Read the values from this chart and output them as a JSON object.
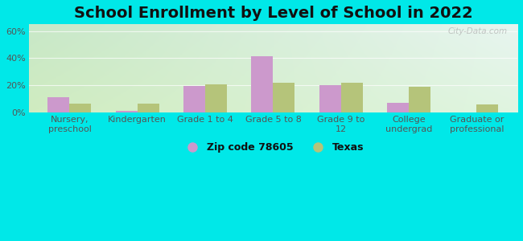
{
  "title": "School Enrollment by Level of School in 2022",
  "categories": [
    "Nursery,\npreschool",
    "Kindergarten",
    "Grade 1 to 4",
    "Grade 5 to 8",
    "Grade 9 to\n12",
    "College\nundergrad",
    "Graduate or\nprofessional"
  ],
  "zip_values": [
    11,
    1,
    19.5,
    41.5,
    20,
    7,
    0
  ],
  "texas_values": [
    6.5,
    6.5,
    21,
    22,
    22,
    19,
    6
  ],
  "zip_color": "#cc99cc",
  "texas_color": "#b5c47a",
  "background_outer": "#00e8e8",
  "grad_top_left": "#c8e8c8",
  "grad_top_right": "#e8f5f0",
  "grad_bottom_left": "#d0ecc0",
  "grad_bottom_right": "#e0f5e0",
  "ylim": [
    0,
    65
  ],
  "yticks": [
    0,
    20,
    40,
    60
  ],
  "ytick_labels": [
    "0%",
    "20%",
    "40%",
    "60%"
  ],
  "legend_label_zip": "Zip code 78605",
  "legend_label_texas": "Texas",
  "bar_width": 0.32,
  "title_fontsize": 14,
  "tick_fontsize": 8,
  "legend_fontsize": 9,
  "watermark": "City-Data.com",
  "grid_color": "#ffffff",
  "tick_color": "#555555"
}
